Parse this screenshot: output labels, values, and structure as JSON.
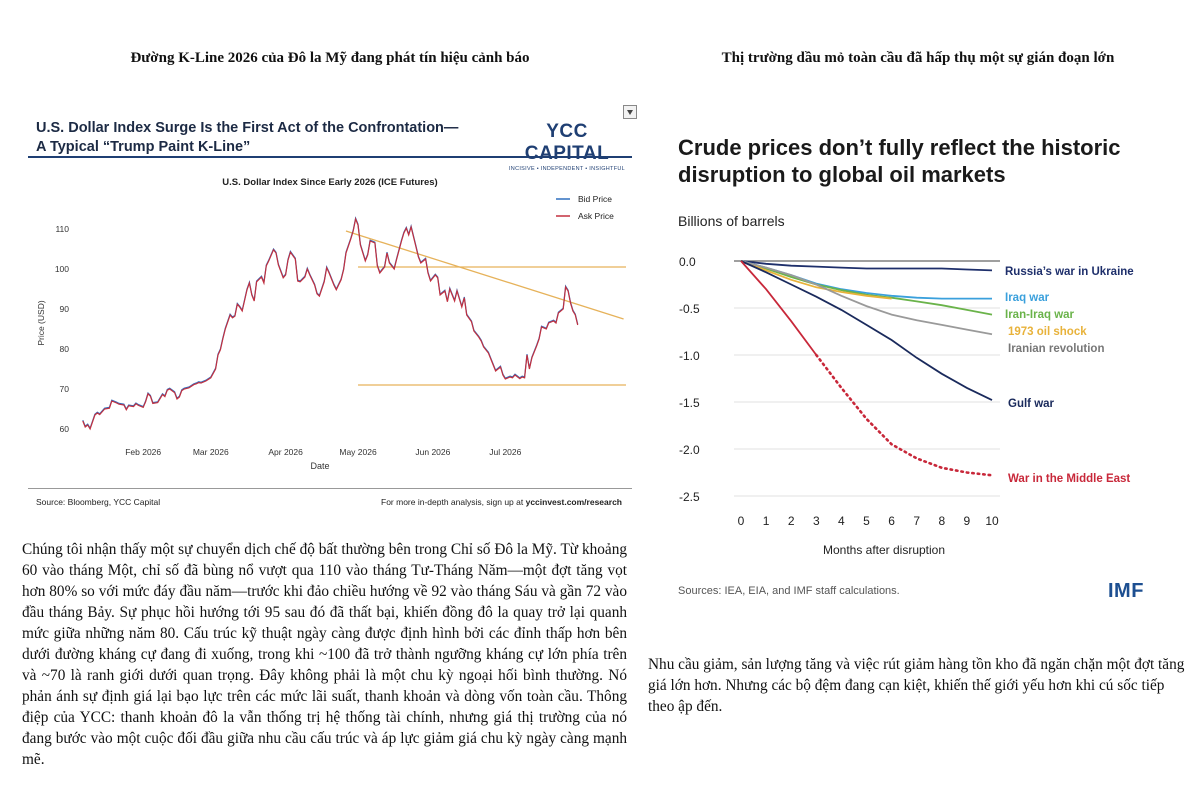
{
  "left": {
    "heading": "Đường K-Line 2026 của Đô la Mỹ đang phát tín hiệu cảnh báo",
    "paragraph": "Chúng tôi nhận thấy một sự chuyển dịch chế độ bất thường bên trong Chỉ số Đô la Mỹ. Từ khoảng 60 vào tháng Một, chỉ số đã bùng nổ vượt qua 110 vào tháng Tư-Tháng Năm—một đợt tăng vọt hơn 80% so với mức đáy đầu năm—trước khi đảo chiều hướng về 92 vào tháng Sáu và gần 72 vào đầu tháng Bảy. Sự phục hồi hướng tới 95 sau đó đã thất bại, khiến đồng đô la quay trở lại quanh mức giữa những năm 80. Cấu trúc kỹ thuật ngày càng được định hình bởi các đỉnh thấp hơn bên dưới đường kháng cự đang đi xuống, trong khi ~100 đã trở thành ngưỡng kháng cự lớn phía trên và ~70 là ranh giới dưới quan trọng. Đây không phải là một chu kỳ ngoại hối bình thường. Nó phản ánh sự định giá lại bạo lực trên các mức lãi suất, thanh khoản và dòng vốn toàn cầu. Thông điệp của YCC: thanh khoản đô la vẫn thống trị hệ thống tài chính, nhưng giá thị trường của nó đang bước vào một cuộc đối đầu giữa nhu cầu cấu trúc và áp lực giảm giá chu kỳ ngày càng mạnh mẽ."
  },
  "right": {
    "heading": "Thị trường dầu mỏ toàn cầu đã hấp thụ một sự gián đoạn lớn",
    "paragraph": "Nhu cầu giảm, sản lượng tăng và việc rút giảm hàng tồn kho đã ngăn chặn một đợt tăng giá lớn hơn. Nhưng các bộ đệm đang cạn kiệt, khiến thế giới yếu hơn khi cú sốc tiếp theo ập đến."
  },
  "usd_chart_text": {
    "title_line1": "U.S. Dollar Index Surge Is the First Act of the Confrontation—",
    "title_line2": "A Typical “Trump Paint K-Line”",
    "logo_name": "YCC CAPITAL",
    "logo_tagline": "INCISIVE  •  INDEPENDENT  •  INSIGHTFUL",
    "source": "Source: Bloomberg, YCC Capital",
    "footer_prefix": "For more in-depth analysis, sign up at ",
    "footer_url": "yccinvest.com/research"
  },
  "oil_chart_text": {
    "title_line1": "Crude prices don’t fully reflect the historic",
    "title_line2": "disruption to global oil markets",
    "units_label": "Billions of barrels",
    "source": "Sources: IEA, EIA, and IMF staff calculations.",
    "logo": "IMF"
  },
  "chart_data": [
    {
      "type": "line",
      "title": "U.S. Dollar Index Since Early 2026 (ICE Futures)",
      "xlabel": "Date",
      "ylabel": "Price (USD)",
      "ylim": [
        59,
        116
      ],
      "xlim": [
        "2026-01-05",
        "2026-08-20"
      ],
      "yticks": [
        60,
        70,
        80,
        90,
        100,
        110
      ],
      "xticks": [
        {
          "date": "2026-02-01",
          "label": "Feb 2026"
        },
        {
          "date": "2026-03-01",
          "label": "Mar 2026"
        },
        {
          "date": "2026-04-01",
          "label": "Apr 2026"
        },
        {
          "date": "2026-05-01",
          "label": "May 2026"
        },
        {
          "date": "2026-06-01",
          "label": "Jun 2026"
        },
        {
          "date": "2026-07-01",
          "label": "Jul 2026"
        }
      ],
      "legend_position": "top-right",
      "grid": false,
      "series": [
        {
          "name": "Bid Price",
          "color": "#2f6fbf"
        },
        {
          "name": "Ask Price",
          "color": "#c2303f"
        }
      ],
      "points": [
        [
          "2026-01-07",
          62.0
        ],
        [
          "2026-01-08",
          60.5
        ],
        [
          "2026-01-09",
          61.0
        ],
        [
          "2026-01-10",
          60.0
        ],
        [
          "2026-01-12",
          63.5
        ],
        [
          "2026-01-13",
          64.0
        ],
        [
          "2026-01-14",
          63.6
        ],
        [
          "2026-01-16",
          65.0
        ],
        [
          "2026-01-18",
          65.2
        ],
        [
          "2026-01-19",
          67.0
        ],
        [
          "2026-01-21",
          66.5
        ],
        [
          "2026-01-22",
          66.2
        ],
        [
          "2026-01-24",
          66.0
        ],
        [
          "2026-01-25",
          64.8
        ],
        [
          "2026-01-26",
          65.8
        ],
        [
          "2026-01-28",
          65.6
        ],
        [
          "2026-01-29",
          66.3
        ],
        [
          "2026-01-30",
          65.9
        ],
        [
          "2026-02-01",
          65.4
        ],
        [
          "2026-02-02",
          66.8
        ],
        [
          "2026-02-03",
          68.8
        ],
        [
          "2026-02-04",
          68.2
        ],
        [
          "2026-02-05",
          66.4
        ],
        [
          "2026-02-07",
          66.6
        ],
        [
          "2026-02-09",
          68.6
        ],
        [
          "2026-02-10",
          68.1
        ],
        [
          "2026-02-11",
          69.7
        ],
        [
          "2026-02-12",
          70.0
        ],
        [
          "2026-02-14",
          69.1
        ],
        [
          "2026-02-15",
          67.5
        ],
        [
          "2026-02-16",
          68.0
        ],
        [
          "2026-02-17",
          69.6
        ],
        [
          "2026-02-18",
          70.0
        ],
        [
          "2026-02-20",
          70.3
        ],
        [
          "2026-02-22",
          71.1
        ],
        [
          "2026-02-23",
          71.3
        ],
        [
          "2026-02-24",
          71.6
        ],
        [
          "2026-02-25",
          71.5
        ],
        [
          "2026-02-27",
          72.0
        ],
        [
          "2026-03-01",
          72.8
        ],
        [
          "2026-03-03",
          75.0
        ],
        [
          "2026-03-04",
          78.5
        ],
        [
          "2026-03-05",
          79.8
        ],
        [
          "2026-03-06",
          82.5
        ],
        [
          "2026-03-07",
          85.0
        ],
        [
          "2026-03-09",
          88.5
        ],
        [
          "2026-03-10",
          87.8
        ],
        [
          "2026-03-11",
          88.2
        ],
        [
          "2026-03-12",
          91.2
        ],
        [
          "2026-03-13",
          90.5
        ],
        [
          "2026-03-14",
          89.5
        ],
        [
          "2026-03-16",
          94.8
        ],
        [
          "2026-03-17",
          96.5
        ],
        [
          "2026-03-18",
          93.5
        ],
        [
          "2026-03-19",
          92.0
        ],
        [
          "2026-03-20",
          96.8
        ],
        [
          "2026-03-22",
          98.0
        ],
        [
          "2026-03-23",
          96.5
        ],
        [
          "2026-03-24",
          100.8
        ],
        [
          "2026-03-25",
          102.0
        ],
        [
          "2026-03-27",
          104.8
        ],
        [
          "2026-03-28",
          104.0
        ],
        [
          "2026-03-29",
          101.0
        ],
        [
          "2026-03-31",
          97.8
        ],
        [
          "2026-04-01",
          98.5
        ],
        [
          "2026-04-02",
          102.2
        ],
        [
          "2026-04-03",
          104.2
        ],
        [
          "2026-04-05",
          102.5
        ],
        [
          "2026-04-06",
          97.0
        ],
        [
          "2026-04-07",
          96.8
        ],
        [
          "2026-04-09",
          98.0
        ],
        [
          "2026-04-10",
          100.0
        ],
        [
          "2026-04-11",
          98.5
        ],
        [
          "2026-04-13",
          96.0
        ],
        [
          "2026-04-14",
          93.8
        ],
        [
          "2026-04-15",
          93.2
        ],
        [
          "2026-04-17",
          96.8
        ],
        [
          "2026-04-18",
          100.3
        ],
        [
          "2026-04-19",
          99.0
        ],
        [
          "2026-04-21",
          96.0
        ],
        [
          "2026-04-22",
          94.8
        ],
        [
          "2026-04-24",
          97.3
        ],
        [
          "2026-04-25",
          99.8
        ],
        [
          "2026-04-26",
          104.0
        ],
        [
          "2026-04-28",
          107.5
        ],
        [
          "2026-04-29",
          109.5
        ],
        [
          "2026-04-30",
          112.5
        ],
        [
          "2026-05-01",
          111.0
        ],
        [
          "2026-05-02",
          106.0
        ],
        [
          "2026-05-04",
          102.0
        ],
        [
          "2026-05-05",
          103.5
        ],
        [
          "2026-05-06",
          107.0
        ],
        [
          "2026-05-08",
          106.5
        ],
        [
          "2026-05-09",
          100.8
        ],
        [
          "2026-05-10",
          99.0
        ],
        [
          "2026-05-12",
          100.5
        ],
        [
          "2026-05-13",
          104.0
        ],
        [
          "2026-05-14",
          101.5
        ],
        [
          "2026-05-16",
          100.0
        ],
        [
          "2026-05-17",
          102.5
        ],
        [
          "2026-05-19",
          107.0
        ],
        [
          "2026-05-20",
          109.0
        ],
        [
          "2026-05-21",
          110.2
        ],
        [
          "2026-05-22",
          108.5
        ],
        [
          "2026-05-23",
          110.5
        ],
        [
          "2026-05-25",
          105.5
        ],
        [
          "2026-05-26",
          103.0
        ],
        [
          "2026-05-27",
          101.5
        ],
        [
          "2026-05-29",
          102.5
        ],
        [
          "2026-05-30",
          99.0
        ],
        [
          "2026-05-31",
          97.0
        ],
        [
          "2026-06-02",
          98.5
        ],
        [
          "2026-06-03",
          97.8
        ],
        [
          "2026-06-04",
          93.5
        ],
        [
          "2026-06-06",
          94.5
        ],
        [
          "2026-06-07",
          91.8
        ],
        [
          "2026-06-08",
          95.0
        ],
        [
          "2026-06-10",
          92.0
        ],
        [
          "2026-06-11",
          94.5
        ],
        [
          "2026-06-13",
          90.5
        ],
        [
          "2026-06-14",
          92.8
        ],
        [
          "2026-06-15",
          88.5
        ],
        [
          "2026-06-17",
          86.8
        ],
        [
          "2026-06-18",
          84.5
        ],
        [
          "2026-06-20",
          83.0
        ],
        [
          "2026-06-21",
          82.0
        ],
        [
          "2026-06-22",
          80.5
        ],
        [
          "2026-06-24",
          79.0
        ],
        [
          "2026-06-25",
          77.5
        ],
        [
          "2026-06-26",
          76.0
        ],
        [
          "2026-06-27",
          74.5
        ],
        [
          "2026-06-29",
          75.5
        ],
        [
          "2026-06-30",
          73.5
        ],
        [
          "2026-07-01",
          72.5
        ],
        [
          "2026-07-03",
          73.0
        ],
        [
          "2026-07-04",
          72.8
        ],
        [
          "2026-07-05",
          73.5
        ],
        [
          "2026-07-07",
          72.6
        ],
        [
          "2026-07-08",
          73.0
        ],
        [
          "2026-07-09",
          72.8
        ],
        [
          "2026-07-10",
          78.5
        ],
        [
          "2026-07-11",
          75.0
        ],
        [
          "2026-07-12",
          77.8
        ],
        [
          "2026-07-14",
          80.8
        ],
        [
          "2026-07-15",
          82.5
        ],
        [
          "2026-07-16",
          85.5
        ],
        [
          "2026-07-18",
          85.0
        ],
        [
          "2026-07-19",
          86.5
        ],
        [
          "2026-07-21",
          87.0
        ],
        [
          "2026-07-22",
          86.5
        ],
        [
          "2026-07-23",
          89.0
        ],
        [
          "2026-07-25",
          90.0
        ],
        [
          "2026-07-26",
          95.5
        ],
        [
          "2026-07-27",
          94.5
        ],
        [
          "2026-07-28",
          91.5
        ],
        [
          "2026-07-29",
          89.5
        ],
        [
          "2026-07-30",
          88.5
        ],
        [
          "2026-07-31",
          86.0
        ]
      ],
      "reference_lines": [
        {
          "kind": "resistance",
          "y": 100.5,
          "from": "2026-05-01",
          "to": "2026-08-20",
          "color": "#e6b25a"
        },
        {
          "kind": "support",
          "y": 71,
          "from": "2026-05-01",
          "to": "2026-08-20",
          "color": "#e6b25a"
        },
        {
          "kind": "trendline",
          "from_point": [
            "2026-04-26",
            109.5
          ],
          "to_point": [
            "2026-08-19",
            87.5
          ],
          "color": "#e6b25a"
        }
      ]
    },
    {
      "type": "line",
      "xlabel": "Months after disruption",
      "ylabel": "Billions of barrels",
      "xlim": [
        0,
        10
      ],
      "ylim": [
        -2.5,
        0
      ],
      "xticks": [
        0,
        1,
        2,
        3,
        4,
        5,
        6,
        7,
        8,
        9,
        10
      ],
      "yticks": [
        0.0,
        -0.5,
        -1.0,
        -1.5,
        -2.0,
        -2.5
      ],
      "ytick_labels": [
        "0.0",
        "-0.5",
        "-1.0",
        "-1.5",
        "-2.0",
        "-2.5"
      ],
      "grid": true,
      "series": [
        {
          "name": "Russia’s war in Ukraine",
          "color": "#1e2f6b",
          "x": [
            0,
            1,
            2,
            3,
            4,
            5,
            6,
            7,
            8,
            9,
            10
          ],
          "y": [
            0,
            -0.03,
            -0.05,
            -0.06,
            -0.07,
            -0.08,
            -0.08,
            -0.08,
            -0.08,
            -0.09,
            -0.1
          ]
        },
        {
          "name": "Iraq war",
          "color": "#3aa0dc",
          "x": [
            0,
            1,
            2,
            3,
            4,
            5,
            6,
            7,
            8,
            9,
            10
          ],
          "y": [
            0,
            -0.07,
            -0.15,
            -0.24,
            -0.3,
            -0.34,
            -0.37,
            -0.39,
            -0.4,
            -0.4,
            -0.4
          ]
        },
        {
          "name": "Iran-Iraq war",
          "color": "#6ab34a",
          "x": [
            0,
            1,
            2,
            3,
            4,
            5,
            6,
            7,
            8,
            9,
            10
          ],
          "y": [
            0,
            -0.08,
            -0.17,
            -0.25,
            -0.31,
            -0.36,
            -0.39,
            -0.43,
            -0.47,
            -0.52,
            -0.57
          ]
        },
        {
          "name": "1973 oil shock",
          "color": "#e8b23a",
          "x": [
            0,
            1,
            2,
            3,
            4,
            5,
            6
          ],
          "y": [
            0,
            -0.1,
            -0.2,
            -0.28,
            -0.33,
            -0.37,
            -0.4
          ]
        },
        {
          "name": "Iranian revolution",
          "color": "#9a9a9a",
          "x": [
            0,
            1,
            2,
            3,
            4,
            5,
            6,
            7,
            8,
            9,
            10
          ],
          "y": [
            0,
            -0.07,
            -0.15,
            -0.25,
            -0.37,
            -0.48,
            -0.57,
            -0.63,
            -0.68,
            -0.73,
            -0.78
          ]
        },
        {
          "name": "Gulf war",
          "color": "#1a2a5c",
          "x": [
            0,
            1,
            2,
            3,
            4,
            5,
            6,
            7,
            8,
            9,
            10
          ],
          "y": [
            0,
            -0.12,
            -0.25,
            -0.38,
            -0.52,
            -0.68,
            -0.84,
            -1.03,
            -1.2,
            -1.35,
            -1.48
          ]
        },
        {
          "name": "War in the Middle East",
          "color": "#c8283a",
          "x": [
            0,
            1,
            2,
            3
          ],
          "y": [
            0,
            -0.3,
            -0.64,
            -1.0
          ]
        },
        {
          "name": "War in the Middle East (projection)",
          "color": "#c8283a",
          "dashed": true,
          "x": [
            3,
            4,
            5,
            6,
            7,
            8,
            9,
            10
          ],
          "y": [
            -1.0,
            -1.35,
            -1.68,
            -1.95,
            -2.1,
            -2.2,
            -2.25,
            -2.28
          ]
        }
      ],
      "labels": [
        {
          "text": "Russia’s war in Ukraine",
          "color": "#1e2f6b"
        },
        {
          "text": "Iraq war",
          "color": "#3aa0dc"
        },
        {
          "text": "Iran-Iraq war",
          "color": "#6ab34a"
        },
        {
          "text": "1973 oil shock",
          "color": "#e8b23a"
        },
        {
          "text": "Iranian revolution",
          "color": "#777777"
        },
        {
          "text": "Gulf war",
          "color": "#1a2a5c"
        },
        {
          "text": "War in the Middle East",
          "color": "#c8283a"
        }
      ]
    }
  ]
}
